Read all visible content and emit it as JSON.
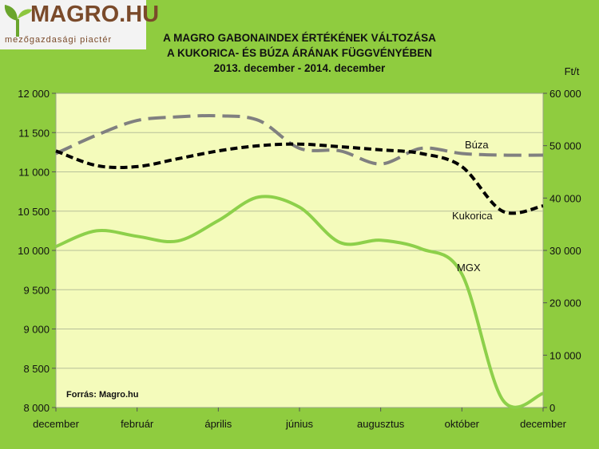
{
  "logo": {
    "text": "MAGRO.HU",
    "tagline": "mezőgazdasági piactér"
  },
  "chart_data": {
    "type": "line",
    "title_lines": [
      "A MAGRO GABONAINDEX ÉRTÉKÉNEK VÁLTOZÁSA",
      "A KUKORICA- ÉS BÚZA ÁRÁNAK FÜGGVÉNYÉBEN",
      "2013. december - 2014. december"
    ],
    "right_unit": "Ft/t",
    "source": "Forrás:  Magro.hu",
    "left_ylim": [
      8000,
      12000
    ],
    "left_ticks": [
      "8 000",
      "8 500",
      "9 000",
      "9 500",
      "10 000",
      "10 500",
      "11 000",
      "11 500",
      "12 000"
    ],
    "right_ylim": [
      0,
      60000
    ],
    "right_ticks": [
      "0",
      "10 000",
      "20 000",
      "30 000",
      "40 000",
      "50 000",
      "60 000"
    ],
    "x_tick_labels": [
      "december",
      "február",
      "április",
      "június",
      "augusztus",
      "október",
      "december"
    ],
    "x_range": [
      0,
      12
    ],
    "grid": true,
    "series": [
      {
        "name": "MGX",
        "axis": "left",
        "color": "#8dd04a",
        "style": "solid",
        "points": [
          [
            0,
            10050
          ],
          [
            1,
            10250
          ],
          [
            2,
            10180
          ],
          [
            3,
            10120
          ],
          [
            4,
            10380
          ],
          [
            5,
            10680
          ],
          [
            6,
            10550
          ],
          [
            7,
            10100
          ],
          [
            8,
            10130
          ],
          [
            9,
            10020
          ],
          [
            10,
            9700
          ],
          [
            11,
            8100
          ],
          [
            12,
            8180
          ]
        ]
      },
      {
        "name": "Búza",
        "axis": "right",
        "color": "#808080",
        "style": "long-dash",
        "points": [
          [
            0,
            48500
          ],
          [
            1,
            52000
          ],
          [
            2,
            54800
          ],
          [
            3,
            55500
          ],
          [
            4,
            55700
          ],
          [
            5,
            54800
          ],
          [
            6,
            49500
          ],
          [
            7,
            49000
          ],
          [
            8,
            46500
          ],
          [
            9,
            49500
          ],
          [
            10,
            48500
          ],
          [
            11,
            48200
          ],
          [
            12,
            48200
          ]
        ]
      },
      {
        "name": "Kukorica",
        "axis": "right",
        "color": "#000000",
        "style": "dash",
        "points": [
          [
            0,
            49000
          ],
          [
            1,
            46200
          ],
          [
            2,
            46000
          ],
          [
            3,
            47500
          ],
          [
            4,
            49000
          ],
          [
            5,
            50000
          ],
          [
            6,
            50300
          ],
          [
            7,
            49800
          ],
          [
            8,
            49200
          ],
          [
            9,
            48500
          ],
          [
            10,
            46000
          ],
          [
            11,
            37500
          ],
          [
            12,
            38500
          ]
        ]
      }
    ],
    "series_labels": [
      {
        "name": "Búza",
        "text": "Búza"
      },
      {
        "name": "Kukorica",
        "text": "Kukorica"
      },
      {
        "name": "MGX",
        "text": "MGX"
      }
    ]
  }
}
